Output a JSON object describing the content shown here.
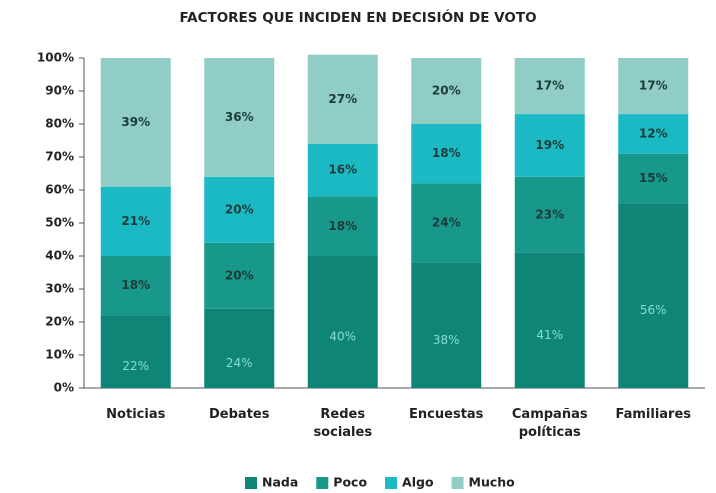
{
  "chart_data": {
    "type": "stacked_bar",
    "title": "FACTORES QUE INCIDEN EN DECISIÓN DE VOTO",
    "categories": [
      "Noticias",
      "Debates",
      "Redes sociales",
      "Encuestas",
      "Campañas políticas",
      "Familiares"
    ],
    "series": [
      {
        "name": "Nada",
        "color": "#0e8577",
        "label_color": "#86ddd6",
        "values": [
          22,
          24,
          40,
          38,
          41,
          56
        ],
        "value_labels": [
          "22%",
          "24%",
          "40%",
          "38%",
          "41%",
          "56%"
        ]
      },
      {
        "name": "Poco",
        "color": "#17988b",
        "label_color": "#1d3b38",
        "values": [
          18,
          20,
          18,
          24,
          23,
          15
        ],
        "value_labels": [
          "18%",
          "20%",
          "18%",
          "24%",
          "23%",
          "15%"
        ]
      },
      {
        "name": "Algo",
        "color": "#1bb9c3",
        "label_color": "#1d3b38",
        "values": [
          21,
          20,
          16,
          18,
          19,
          12
        ],
        "value_labels": [
          "21%",
          "20%",
          "16%",
          "18%",
          "19%",
          "12%"
        ]
      },
      {
        "name": "Mucho",
        "color": "#8fcdc6",
        "label_color": "#1d3b38",
        "values": [
          39,
          36,
          27,
          20,
          17,
          17
        ],
        "value_labels": [
          "39%",
          "36%",
          "27%",
          "20%",
          "17%",
          "17%"
        ]
      }
    ],
    "ylim": [
      0,
      100
    ],
    "yticks": [
      {
        "value": 0,
        "label": "0%"
      },
      {
        "value": 10,
        "label": "10%"
      },
      {
        "value": 20,
        "label": "20%"
      },
      {
        "value": 30,
        "label": "30%"
      },
      {
        "value": 40,
        "label": "40%"
      },
      {
        "value": 50,
        "label": "50%"
      },
      {
        "value": 60,
        "label": "60%"
      },
      {
        "value": 70,
        "label": "70%"
      },
      {
        "value": 80,
        "label": "80%"
      },
      {
        "value": 90,
        "label": "90%"
      },
      {
        "value": 100,
        "label": "100%"
      }
    ],
    "legend": "bottom"
  }
}
